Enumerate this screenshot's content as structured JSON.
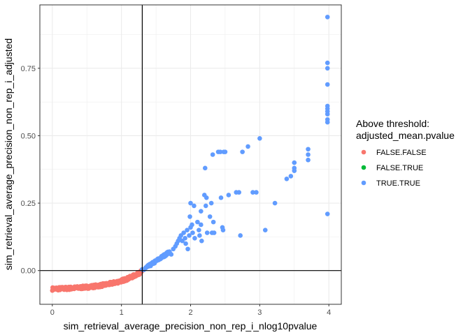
{
  "chart_data": {
    "type": "scatter",
    "title": "",
    "xlabel": "sim_retrieval_average_precision_non_rep_i_nlog10pvalue",
    "ylabel": "sim_retrieval_average_precision_non_rep_i_adjusted",
    "xlim": [
      -0.18,
      4.18
    ],
    "ylim": [
      -0.125,
      0.985
    ],
    "x_ticks": [
      0,
      1,
      2,
      3,
      4
    ],
    "x_tick_labels": [
      "0",
      "1",
      "2",
      "3",
      "4"
    ],
    "y_ticks": [
      0.0,
      0.25,
      0.5,
      0.75
    ],
    "y_tick_labels": [
      "0.00",
      "0.25",
      "0.50",
      "0.75"
    ],
    "grid": true,
    "reference_lines": {
      "vertical_x": 1.301,
      "horizontal_y": 0.0
    },
    "legend": {
      "title_line1": "Above threshold:",
      "title_line2": "adjusted_mean.pvalue",
      "placement": "right",
      "entries": [
        {
          "label": "FALSE.FALSE",
          "color": "#F8766D"
        },
        {
          "label": "FALSE.TRUE",
          "color": "#00BA38"
        },
        {
          "label": "TRUE.TRUE",
          "color": "#619CFF"
        }
      ]
    },
    "series": [
      {
        "name": "FALSE.FALSE",
        "color": "#F8766D",
        "curve": {
          "x_start": 0.0,
          "x_end": 1.3,
          "y_start": -0.068,
          "y_end": -0.002,
          "shape": "exponential",
          "spread": 0.012,
          "count": 260
        }
      },
      {
        "name": "FALSE.TRUE",
        "color": "#00BA38",
        "points": []
      },
      {
        "name": "TRUE.TRUE",
        "color": "#619CFF",
        "curve": {
          "x_start": 1.3,
          "x_end": 1.7,
          "y_start": 0.0,
          "y_end": 0.07,
          "spread": 0.01,
          "count": 70
        },
        "points": [
          [
            1.72,
            0.06
          ],
          [
            1.75,
            0.08
          ],
          [
            1.78,
            0.09
          ],
          [
            1.8,
            0.1
          ],
          [
            1.82,
            0.11
          ],
          [
            1.84,
            0.12
          ],
          [
            1.86,
            0.13
          ],
          [
            1.88,
            0.11
          ],
          [
            1.9,
            0.14
          ],
          [
            1.92,
            0.12
          ],
          [
            1.95,
            0.15
          ],
          [
            1.98,
            0.13
          ],
          [
            1.99,
            0.2
          ],
          [
            2.0,
            0.25
          ],
          [
            2.0,
            0.16
          ],
          [
            2.02,
            0.17
          ],
          [
            2.03,
            0.14
          ],
          [
            2.05,
            0.24
          ],
          [
            2.06,
            0.12
          ],
          [
            1.93,
            0.1
          ],
          [
            1.96,
            0.08
          ],
          [
            2.1,
            0.18
          ],
          [
            2.12,
            0.15
          ],
          [
            2.13,
            0.13
          ],
          [
            2.15,
            0.17
          ],
          [
            2.15,
            0.22
          ],
          [
            2.16,
            0.11
          ],
          [
            2.2,
            0.28
          ],
          [
            2.21,
            0.38
          ],
          [
            2.22,
            0.24
          ],
          [
            2.23,
            0.27
          ],
          [
            2.24,
            0.14
          ],
          [
            2.28,
            0.2
          ],
          [
            2.3,
            0.25
          ],
          [
            2.31,
            0.14
          ],
          [
            2.32,
            0.43
          ],
          [
            2.33,
            0.18
          ],
          [
            2.34,
            0.14
          ],
          [
            2.4,
            0.44
          ],
          [
            2.43,
            0.44
          ],
          [
            2.44,
            0.27
          ],
          [
            2.46,
            0.16
          ],
          [
            2.47,
            0.15
          ],
          [
            2.48,
            0.44
          ],
          [
            2.5,
            0.44
          ],
          [
            2.55,
            0.28
          ],
          [
            2.66,
            0.29
          ],
          [
            2.7,
            0.29
          ],
          [
            2.72,
            0.13
          ],
          [
            2.75,
            0.44
          ],
          [
            2.83,
            0.46
          ],
          [
            2.9,
            0.29
          ],
          [
            2.95,
            0.29
          ],
          [
            3.0,
            0.49
          ],
          [
            3.08,
            0.15
          ],
          [
            3.22,
            0.25
          ],
          [
            3.39,
            0.34
          ],
          [
            3.45,
            0.35
          ],
          [
            3.5,
            0.37
          ],
          [
            3.5,
            0.38
          ],
          [
            3.5,
            0.4
          ],
          [
            3.7,
            0.41
          ],
          [
            3.7,
            0.43
          ],
          [
            3.7,
            0.45
          ],
          [
            3.98,
            0.21
          ],
          [
            3.98,
            0.55
          ],
          [
            3.98,
            0.56
          ],
          [
            3.98,
            0.58
          ],
          [
            3.98,
            0.59
          ],
          [
            3.98,
            0.6
          ],
          [
            3.98,
            0.61
          ],
          [
            3.98,
            0.69
          ],
          [
            3.98,
            0.75
          ],
          [
            3.98,
            0.77
          ],
          [
            3.98,
            0.94
          ]
        ]
      }
    ]
  }
}
